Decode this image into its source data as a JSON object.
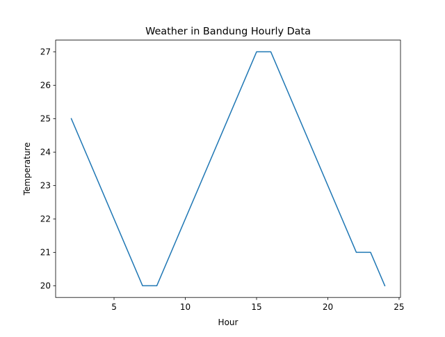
{
  "chart_data": {
    "type": "line",
    "title": "Weather in Bandung Hourly Data",
    "xlabel": "Hour",
    "ylabel": "Temperature",
    "xlim": [
      0.9,
      25.1
    ],
    "ylim": [
      19.65,
      27.35
    ],
    "x_ticks": [
      5,
      10,
      15,
      20,
      25
    ],
    "y_ticks": [
      20,
      21,
      22,
      23,
      24,
      25,
      26,
      27
    ],
    "x_tick_labels": [
      "5",
      "10",
      "15",
      "20",
      "25"
    ],
    "y_tick_labels": [
      "20",
      "21",
      "22",
      "23",
      "24",
      "25",
      "26",
      "27"
    ],
    "grid": false,
    "series": [
      {
        "color": "#1f77b4",
        "x": [
          2,
          3,
          4,
          5,
          6,
          7,
          8,
          9,
          10,
          11,
          12,
          13,
          14,
          15,
          16,
          17,
          18,
          19,
          20,
          21,
          22,
          23,
          24
        ],
        "y": [
          25,
          24,
          23,
          22,
          21,
          20,
          20,
          21,
          22,
          23,
          24,
          25,
          26,
          27,
          27,
          26,
          25,
          24,
          23,
          22,
          21,
          21,
          20
        ]
      }
    ]
  }
}
